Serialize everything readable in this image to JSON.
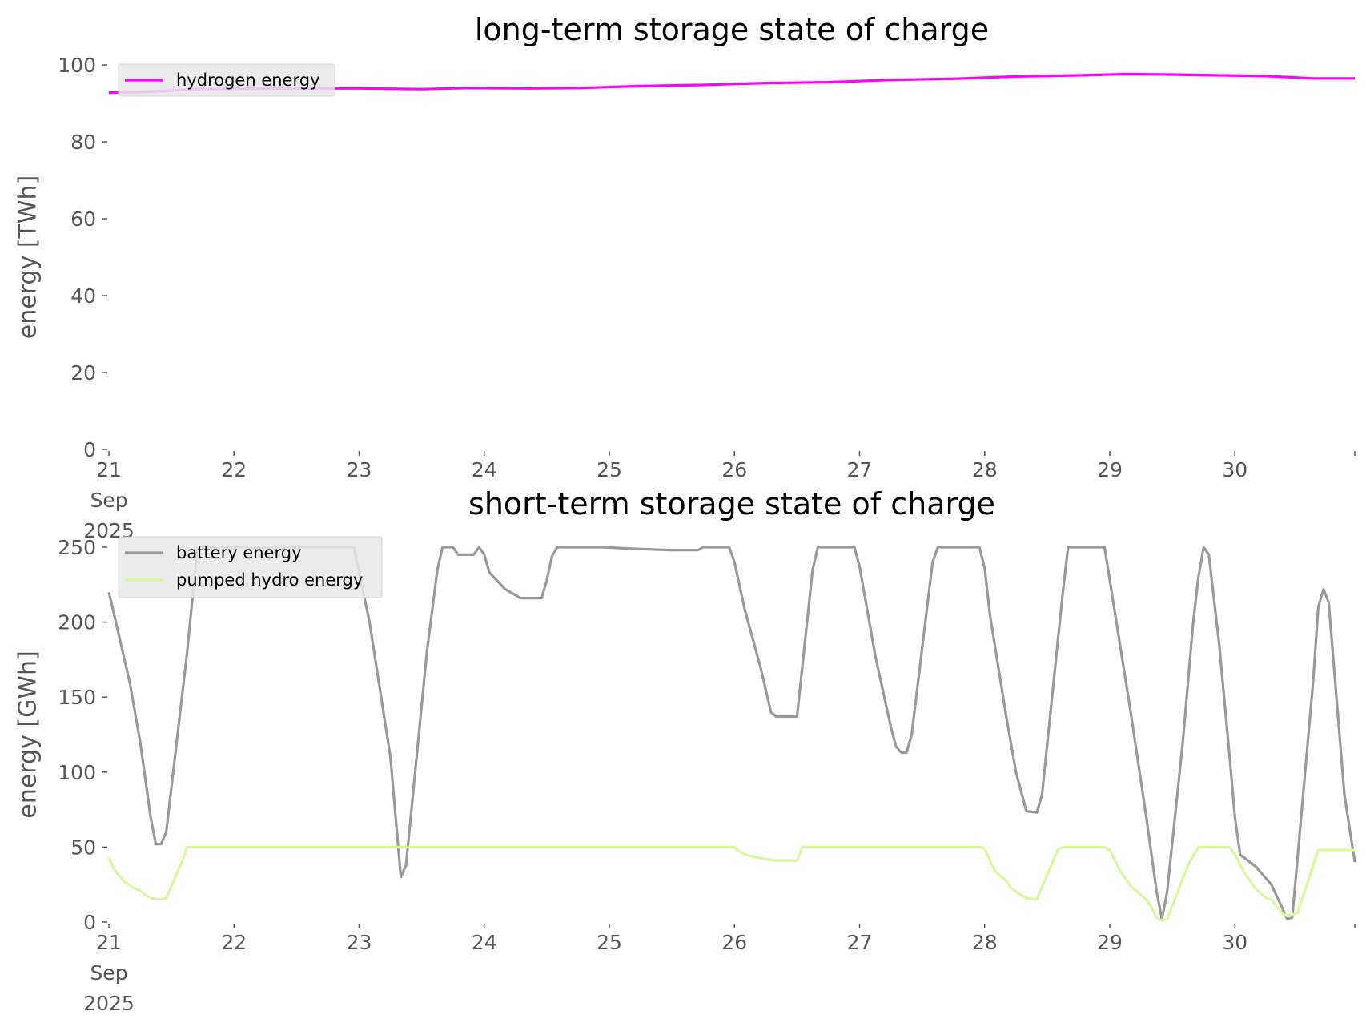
{
  "chart_data": [
    {
      "type": "line",
      "title": "long-term storage state of charge",
      "ylabel": "energy [TWh]",
      "ylim": [
        0,
        100
      ],
      "yticks": [
        0,
        20,
        40,
        60,
        80,
        100
      ],
      "xlim": [
        "2025-09-21T00:00",
        "2025-09-30T23:00"
      ],
      "xticks": [
        {
          "date": "2025-09-21",
          "label": [
            "21",
            "Sep",
            "2025"
          ]
        },
        {
          "date": "2025-09-22",
          "label": [
            "22"
          ]
        },
        {
          "date": "2025-09-23",
          "label": [
            "23"
          ]
        },
        {
          "date": "2025-09-24",
          "label": [
            "24"
          ]
        },
        {
          "date": "2025-09-25",
          "label": [
            "25"
          ]
        },
        {
          "date": "2025-09-26",
          "label": [
            "26"
          ]
        },
        {
          "date": "2025-09-27",
          "label": [
            "27"
          ]
        },
        {
          "date": "2025-09-28",
          "label": [
            "28"
          ]
        },
        {
          "date": "2025-09-29",
          "label": [
            "29"
          ]
        },
        {
          "date": "2025-09-30",
          "label": [
            "30"
          ]
        }
      ],
      "legend": "top-left",
      "grid": false,
      "series": [
        {
          "name": "hydrogen energy",
          "color": "#ff00ff",
          "points": [
            [
              "2025-09-21T00:00",
              92.8
            ],
            [
              "2025-09-21T09:00",
              93.1
            ],
            [
              "2025-09-21T18:00",
              93.8
            ],
            [
              "2025-09-22T12:00",
              93.9
            ],
            [
              "2025-09-23T00:00",
              93.9
            ],
            [
              "2025-09-23T12:00",
              93.7
            ],
            [
              "2025-09-23T21:00",
              94.0
            ],
            [
              "2025-09-24T09:00",
              93.9
            ],
            [
              "2025-09-24T18:00",
              94.0
            ],
            [
              "2025-09-25T06:00",
              94.5
            ],
            [
              "2025-09-25T18:00",
              94.8
            ],
            [
              "2025-09-26T06:00",
              95.3
            ],
            [
              "2025-09-26T18:00",
              95.5
            ],
            [
              "2025-09-27T06:00",
              96.1
            ],
            [
              "2025-09-27T18:00",
              96.4
            ],
            [
              "2025-09-28T06:00",
              97.0
            ],
            [
              "2025-09-28T18:00",
              97.3
            ],
            [
              "2025-09-29T03:00",
              97.6
            ],
            [
              "2025-09-29T12:00",
              97.5
            ],
            [
              "2025-09-29T21:00",
              97.3
            ],
            [
              "2025-09-30T06:00",
              97.1
            ],
            [
              "2025-09-30T15:00",
              96.5
            ],
            [
              "2025-09-30T23:00",
              96.5
            ]
          ]
        }
      ]
    },
    {
      "type": "line",
      "title": "short-term storage state of charge",
      "ylabel": "energy [GWh]",
      "ylim": [
        0,
        250
      ],
      "yticks": [
        0,
        50,
        100,
        150,
        200,
        250
      ],
      "xlim": [
        "2025-09-21T00:00",
        "2025-09-30T23:00"
      ],
      "xticks": [
        {
          "date": "2025-09-21",
          "label": [
            "21",
            "Sep",
            "2025"
          ]
        },
        {
          "date": "2025-09-22",
          "label": [
            "22"
          ]
        },
        {
          "date": "2025-09-23",
          "label": [
            "23"
          ]
        },
        {
          "date": "2025-09-24",
          "label": [
            "24"
          ]
        },
        {
          "date": "2025-09-25",
          "label": [
            "25"
          ]
        },
        {
          "date": "2025-09-26",
          "label": [
            "26"
          ]
        },
        {
          "date": "2025-09-27",
          "label": [
            "27"
          ]
        },
        {
          "date": "2025-09-28",
          "label": [
            "28"
          ]
        },
        {
          "date": "2025-09-29",
          "label": [
            "29"
          ]
        },
        {
          "date": "2025-09-30",
          "label": [
            "30"
          ]
        }
      ],
      "legend": "top-left",
      "grid": false,
      "series": [
        {
          "name": "battery energy",
          "color": "#999999",
          "points": [
            [
              "2025-09-21T00:00",
              220
            ],
            [
              "2025-09-21T04:00",
              160
            ],
            [
              "2025-09-21T06:00",
              120
            ],
            [
              "2025-09-21T08:00",
              70
            ],
            [
              "2025-09-21T09:00",
              52
            ],
            [
              "2025-09-21T10:00",
              52
            ],
            [
              "2025-09-21T11:00",
              60
            ],
            [
              "2025-09-21T15:00",
              180
            ],
            [
              "2025-09-21T17:00",
              250
            ],
            [
              "2025-09-22T23:00",
              250
            ],
            [
              "2025-09-23T02:00",
              200
            ],
            [
              "2025-09-23T06:00",
              110
            ],
            [
              "2025-09-23T08:00",
              30
            ],
            [
              "2025-09-23T09:00",
              38
            ],
            [
              "2025-09-23T13:00",
              180
            ],
            [
              "2025-09-23T15:00",
              235
            ],
            [
              "2025-09-23T16:00",
              250
            ],
            [
              "2025-09-23T18:00",
              250
            ],
            [
              "2025-09-23T19:00",
              245
            ],
            [
              "2025-09-23T22:00",
              245
            ],
            [
              "2025-09-23T23:00",
              250
            ],
            [
              "2025-09-24T00:00",
              245
            ],
            [
              "2025-09-24T01:00",
              233
            ],
            [
              "2025-09-24T04:00",
              222
            ],
            [
              "2025-09-24T07:00",
              216
            ],
            [
              "2025-09-24T11:00",
              216
            ],
            [
              "2025-09-24T12:00",
              228
            ],
            [
              "2025-09-24T13:00",
              244
            ],
            [
              "2025-09-24T14:00",
              250
            ],
            [
              "2025-09-24T23:00",
              250
            ],
            [
              "2025-09-25T04:00",
              249
            ],
            [
              "2025-09-25T12:00",
              248
            ],
            [
              "2025-09-25T17:00",
              248
            ],
            [
              "2025-09-25T18:00",
              250
            ],
            [
              "2025-09-25T23:00",
              250
            ],
            [
              "2025-09-26T00:00",
              240
            ],
            [
              "2025-09-26T02:00",
              208
            ],
            [
              "2025-09-26T05:00",
              170
            ],
            [
              "2025-09-26T07:00",
              140
            ],
            [
              "2025-09-26T08:00",
              137
            ],
            [
              "2025-09-26T12:00",
              137
            ],
            [
              "2025-09-26T15:00",
              235
            ],
            [
              "2025-09-26T16:00",
              250
            ],
            [
              "2025-09-26T23:00",
              250
            ],
            [
              "2025-09-27T00:00",
              237
            ],
            [
              "2025-09-27T03:00",
              178
            ],
            [
              "2025-09-27T06:00",
              130
            ],
            [
              "2025-09-27T07:00",
              117
            ],
            [
              "2025-09-27T08:00",
              113
            ],
            [
              "2025-09-27T09:00",
              113
            ],
            [
              "2025-09-27T10:00",
              125
            ],
            [
              "2025-09-27T14:00",
              240
            ],
            [
              "2025-09-27T15:00",
              250
            ],
            [
              "2025-09-27T23:00",
              250
            ],
            [
              "2025-09-28T00:00",
              236
            ],
            [
              "2025-09-28T01:00",
              205
            ],
            [
              "2025-09-28T04:00",
              140
            ],
            [
              "2025-09-28T06:00",
              100
            ],
            [
              "2025-09-28T08:00",
              74
            ],
            [
              "2025-09-28T10:00",
              73
            ],
            [
              "2025-09-28T11:00",
              85
            ],
            [
              "2025-09-28T15:00",
              220
            ],
            [
              "2025-09-28T16:00",
              250
            ],
            [
              "2025-09-28T23:00",
              250
            ],
            [
              "2025-09-29T00:00",
              228
            ],
            [
              "2025-09-29T04:00",
              140
            ],
            [
              "2025-09-29T07:00",
              70
            ],
            [
              "2025-09-29T09:00",
              20
            ],
            [
              "2025-09-29T10:00",
              2
            ],
            [
              "2025-09-29T11:00",
              20
            ],
            [
              "2025-09-29T14:00",
              120
            ],
            [
              "2025-09-29T16:00",
              200
            ],
            [
              "2025-09-29T17:00",
              230
            ],
            [
              "2025-09-29T18:00",
              250
            ],
            [
              "2025-09-29T19:00",
              245
            ],
            [
              "2025-09-29T21:00",
              185
            ],
            [
              "2025-09-29T23:00",
              110
            ],
            [
              "2025-09-30T00:00",
              70
            ],
            [
              "2025-09-30T01:00",
              45
            ],
            [
              "2025-09-30T04:00",
              37
            ],
            [
              "2025-09-30T07:00",
              25
            ],
            [
              "2025-09-30T09:00",
              10
            ],
            [
              "2025-09-30T10:00",
              2
            ],
            [
              "2025-09-30T11:00",
              3
            ],
            [
              "2025-09-30T15:00",
              160
            ],
            [
              "2025-09-30T16:00",
              210
            ],
            [
              "2025-09-30T17:00",
              222
            ],
            [
              "2025-09-30T18:00",
              213
            ],
            [
              "2025-09-30T19:00",
              170
            ],
            [
              "2025-09-30T21:00",
              85
            ],
            [
              "2025-09-30T23:00",
              40
            ]
          ]
        },
        {
          "name": "pumped hydro energy",
          "color": "#d9f7a0",
          "points": [
            [
              "2025-09-21T00:00",
              43
            ],
            [
              "2025-09-21T01:00",
              35
            ],
            [
              "2025-09-21T03:00",
              27
            ],
            [
              "2025-09-21T05:00",
              22
            ],
            [
              "2025-09-21T06:00",
              21
            ],
            [
              "2025-09-21T07:00",
              18
            ],
            [
              "2025-09-21T08:00",
              16
            ],
            [
              "2025-09-21T10:00",
              15
            ],
            [
              "2025-09-21T11:00",
              16
            ],
            [
              "2025-09-21T14:00",
              40
            ],
            [
              "2025-09-21T15:00",
              50
            ],
            [
              "2025-09-25T23:00",
              50
            ],
            [
              "2025-09-26T00:00",
              50
            ],
            [
              "2025-09-26T01:00",
              47
            ],
            [
              "2025-09-26T03:00",
              44
            ],
            [
              "2025-09-26T06:00",
              42
            ],
            [
              "2025-09-26T08:00",
              41
            ],
            [
              "2025-09-26T12:00",
              41
            ],
            [
              "2025-09-26T13:00",
              50
            ],
            [
              "2025-09-27T23:00",
              50
            ],
            [
              "2025-09-28T00:00",
              49
            ],
            [
              "2025-09-28T01:00",
              41
            ],
            [
              "2025-09-28T02:00",
              34
            ],
            [
              "2025-09-28T04:00",
              28
            ],
            [
              "2025-09-28T05:00",
              23
            ],
            [
              "2025-09-28T07:00",
              18
            ],
            [
              "2025-09-28T08:00",
              16
            ],
            [
              "2025-09-28T10:00",
              15
            ],
            [
              "2025-09-28T14:00",
              48
            ],
            [
              "2025-09-28T15:00",
              50
            ],
            [
              "2025-09-28T23:00",
              50
            ],
            [
              "2025-09-29T00:00",
              48
            ],
            [
              "2025-09-29T02:00",
              34
            ],
            [
              "2025-09-29T04:00",
              24
            ],
            [
              "2025-09-29T06:00",
              18
            ],
            [
              "2025-09-29T07:00",
              15
            ],
            [
              "2025-09-29T08:00",
              10
            ],
            [
              "2025-09-29T09:00",
              3
            ],
            [
              "2025-09-29T10:00",
              1
            ],
            [
              "2025-09-29T11:00",
              2
            ],
            [
              "2025-09-29T15:00",
              38
            ],
            [
              "2025-09-29T17:00",
              50
            ],
            [
              "2025-09-29T23:00",
              50
            ],
            [
              "2025-09-30T00:00",
              45
            ],
            [
              "2025-09-30T02:00",
              32
            ],
            [
              "2025-09-30T04:00",
              22
            ],
            [
              "2025-09-30T06:00",
              16
            ],
            [
              "2025-09-30T07:00",
              15
            ],
            [
              "2025-09-30T09:00",
              6
            ],
            [
              "2025-09-30T10:00",
              4
            ],
            [
              "2025-09-30T12:00",
              6
            ],
            [
              "2025-09-30T16:00",
              48
            ],
            [
              "2025-09-30T23:00",
              48
            ]
          ]
        }
      ]
    }
  ]
}
